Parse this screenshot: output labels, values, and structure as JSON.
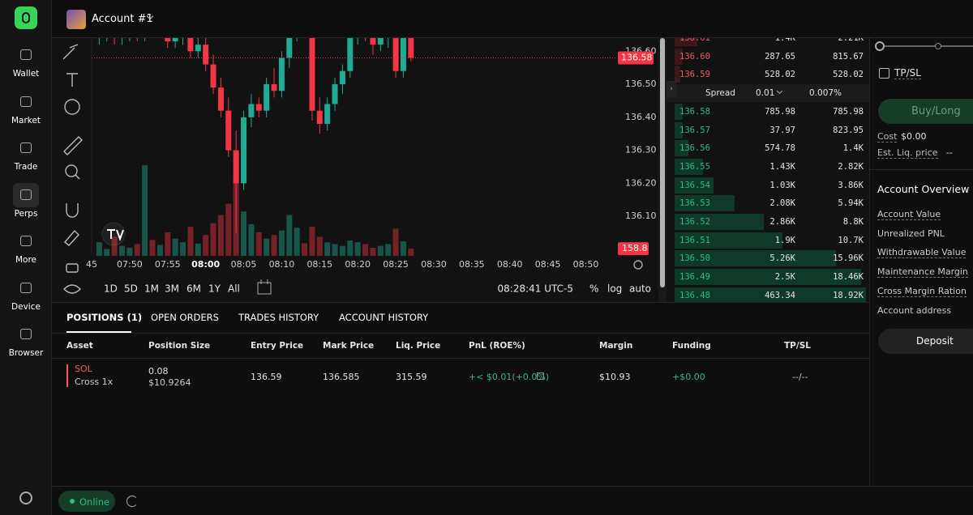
{
  "sidebar": {
    "nav": [
      "Wallet",
      "Market",
      "Trade",
      "Perps",
      "More",
      "Device",
      "Browser"
    ]
  },
  "header": {
    "account": "Account #1"
  },
  "chart_data": {
    "type": "candlestick",
    "up_color": "#22ab94",
    "down_color": "#f23645",
    "x": [
      "07:46",
      "07:47",
      "07:48",
      "07:49",
      "07:50",
      "07:51",
      "07:52",
      "07:53",
      "07:54",
      "07:55",
      "07:56",
      "07:57",
      "07:58",
      "07:59",
      "08:00",
      "08:01",
      "08:02",
      "08:03",
      "08:04",
      "08:05",
      "08:06",
      "08:07",
      "08:08",
      "08:09",
      "08:10",
      "08:11",
      "08:12",
      "08:13",
      "08:14",
      "08:15",
      "08:16",
      "08:17",
      "08:18",
      "08:19",
      "08:20",
      "08:21",
      "08:22",
      "08:23",
      "08:24",
      "08:25",
      "08:26",
      "08:27"
    ],
    "open": [
      136.64,
      136.65,
      136.66,
      136.64,
      136.65,
      136.66,
      136.65,
      136.67,
      136.66,
      136.67,
      136.63,
      136.64,
      136.65,
      136.6,
      136.62,
      136.56,
      136.49,
      136.42,
      136.3,
      136.2,
      136.4,
      136.44,
      136.42,
      136.5,
      136.48,
      136.58,
      136.66,
      136.68,
      136.66,
      136.42,
      136.38,
      136.44,
      136.5,
      136.54,
      136.64,
      136.68,
      136.65,
      136.62,
      136.64,
      136.68,
      136.54,
      136.66
    ],
    "high": [
      136.68,
      136.69,
      136.7,
      136.67,
      136.69,
      136.7,
      136.69,
      136.7,
      136.69,
      136.7,
      136.66,
      136.67,
      136.67,
      136.64,
      136.64,
      136.59,
      136.52,
      136.46,
      136.36,
      136.42,
      136.47,
      136.46,
      136.52,
      136.55,
      136.6,
      136.69,
      136.71,
      136.7,
      136.68,
      136.46,
      136.46,
      136.52,
      136.56,
      136.66,
      136.71,
      136.7,
      136.67,
      136.66,
      136.7,
      136.7,
      136.68,
      136.69
    ],
    "low": [
      136.62,
      136.63,
      136.62,
      136.62,
      136.63,
      136.63,
      136.63,
      136.64,
      136.64,
      136.61,
      136.61,
      136.62,
      136.58,
      136.58,
      136.54,
      136.47,
      136.4,
      136.28,
      136.05,
      136.18,
      136.37,
      136.4,
      136.4,
      136.46,
      136.46,
      136.55,
      136.63,
      136.64,
      136.39,
      136.35,
      136.36,
      136.42,
      136.47,
      136.52,
      136.62,
      136.63,
      136.59,
      136.6,
      136.61,
      136.52,
      136.52,
      136.57
    ],
    "close": [
      136.65,
      136.66,
      136.64,
      136.65,
      136.66,
      136.65,
      136.67,
      136.66,
      136.67,
      136.63,
      136.64,
      136.65,
      136.6,
      136.62,
      136.56,
      136.49,
      136.42,
      136.3,
      136.2,
      136.4,
      136.44,
      136.42,
      136.5,
      136.48,
      136.58,
      136.66,
      136.68,
      136.66,
      136.42,
      136.38,
      136.44,
      136.5,
      136.54,
      136.64,
      136.68,
      136.65,
      136.62,
      136.64,
      136.68,
      136.54,
      136.66,
      136.58
    ],
    "volume": [
      300,
      150,
      420,
      220,
      180,
      260,
      2000,
      350,
      240,
      520,
      380,
      300,
      640,
      270,
      460,
      720,
      900,
      1150,
      1680,
      980,
      700,
      520,
      380,
      460,
      560,
      900,
      620,
      280,
      640,
      420,
      300,
      260,
      220,
      340,
      300,
      260,
      180,
      220,
      260,
      600,
      320,
      158.8
    ],
    "volume_lim": [
      0,
      2400
    ],
    "ylim": [
      135.98,
      136.64
    ],
    "yticks": [
      {
        "value": 136.6,
        "label": "136.60"
      },
      {
        "value": 136.5,
        "label": "136.50"
      },
      {
        "value": 136.4,
        "label": "136.40"
      },
      {
        "value": 136.3,
        "label": "136.30"
      },
      {
        "value": 136.2,
        "label": "136.20"
      },
      {
        "value": 136.1,
        "label": "136.10"
      }
    ],
    "xlim": [
      "07:45",
      "08:54"
    ],
    "xticks": [
      {
        "value": "07:45",
        "label": "45"
      },
      "07:50",
      "07:55",
      "08:00",
      "08:05",
      "08:10",
      "08:15",
      "08:20",
      "08:25",
      "08:30",
      "08:35",
      "08:40",
      "08:45",
      "08:50"
    ],
    "last_price": 136.58,
    "last_volume": 158.8
  },
  "timeframes": [
    "1D",
    "5D",
    "1M",
    "3M",
    "6M",
    "1Y",
    "All"
  ],
  "clock": "08:28:41 UTC-5",
  "scale_options": [
    "%",
    "log",
    "auto"
  ],
  "order_book": {
    "asks": [
      {
        "price": "136.61",
        "size": "1.4K",
        "total": "2.21K",
        "depth": 2210
      },
      {
        "price": "136.60",
        "size": "287.65",
        "total": "815.67",
        "depth": 815.67
      },
      {
        "price": "136.59",
        "size": "528.02",
        "total": "528.02",
        "depth": 528.02
      }
    ],
    "spread": {
      "label": "Spread",
      "value": "0.01",
      "percent": "0.007%"
    },
    "bids": [
      {
        "price": "136.58",
        "size": "785.98",
        "total": "785.98",
        "depth": 785.98
      },
      {
        "price": "136.57",
        "size": "37.97",
        "total": "823.95",
        "depth": 823.95
      },
      {
        "price": "136.56",
        "size": "574.78",
        "total": "1.4K",
        "depth": 1400
      },
      {
        "price": "136.55",
        "size": "1.43K",
        "total": "2.82K",
        "depth": 2820
      },
      {
        "price": "136.54",
        "size": "1.03K",
        "total": "3.86K",
        "depth": 3860
      },
      {
        "price": "136.53",
        "size": "2.08K",
        "total": "5.94K",
        "depth": 5940
      },
      {
        "price": "136.52",
        "size": "2.86K",
        "total": "8.8K",
        "depth": 8800
      },
      {
        "price": "136.51",
        "size": "1.9K",
        "total": "10.7K",
        "depth": 10700
      },
      {
        "price": "136.50",
        "size": "5.26K",
        "total": "15.96K",
        "depth": 15960
      },
      {
        "price": "136.49",
        "size": "2.5K",
        "total": "18.46K",
        "depth": 18460
      },
      {
        "price": "136.48",
        "size": "463.34",
        "total": "18.92K",
        "depth": 18920
      }
    ]
  },
  "order_panel": {
    "tpsl": "TP/SL",
    "button": "Buy/Long",
    "cost_label": "Cost",
    "cost": "$0.00",
    "liq_label": "Est. Liq. price",
    "liq": "--"
  },
  "account_overview": {
    "title": "Account Overview",
    "items": [
      "Account Value",
      "Unrealized PNL",
      "Withdrawable Value",
      "Maintenance Margin",
      "Cross Margin Ration",
      "Account address"
    ],
    "deposit": "Deposit"
  },
  "positions": {
    "tabs": [
      "POSITIONS (1)",
      "OPEN ORDERS",
      "TRADES HISTORY",
      "ACCOUNT HISTORY"
    ],
    "columns": [
      "Asset",
      "Position Size",
      "Entry Price",
      "Mark Price",
      "Liq. Price",
      "PnL (ROE%)",
      "Margin",
      "Funding",
      "TP/SL"
    ],
    "row": {
      "asset": "SOL",
      "mode": "Cross 1x",
      "size": "0.08",
      "size_usd": "$10.9264",
      "entry": "136.59",
      "mark": "136.585",
      "liq": "315.59",
      "pnl": "+< $0.01(+0.0%)",
      "margin": "$10.93",
      "funding": "+$0.00",
      "tpsl": "--/--"
    }
  },
  "footer": {
    "status": "Online"
  }
}
